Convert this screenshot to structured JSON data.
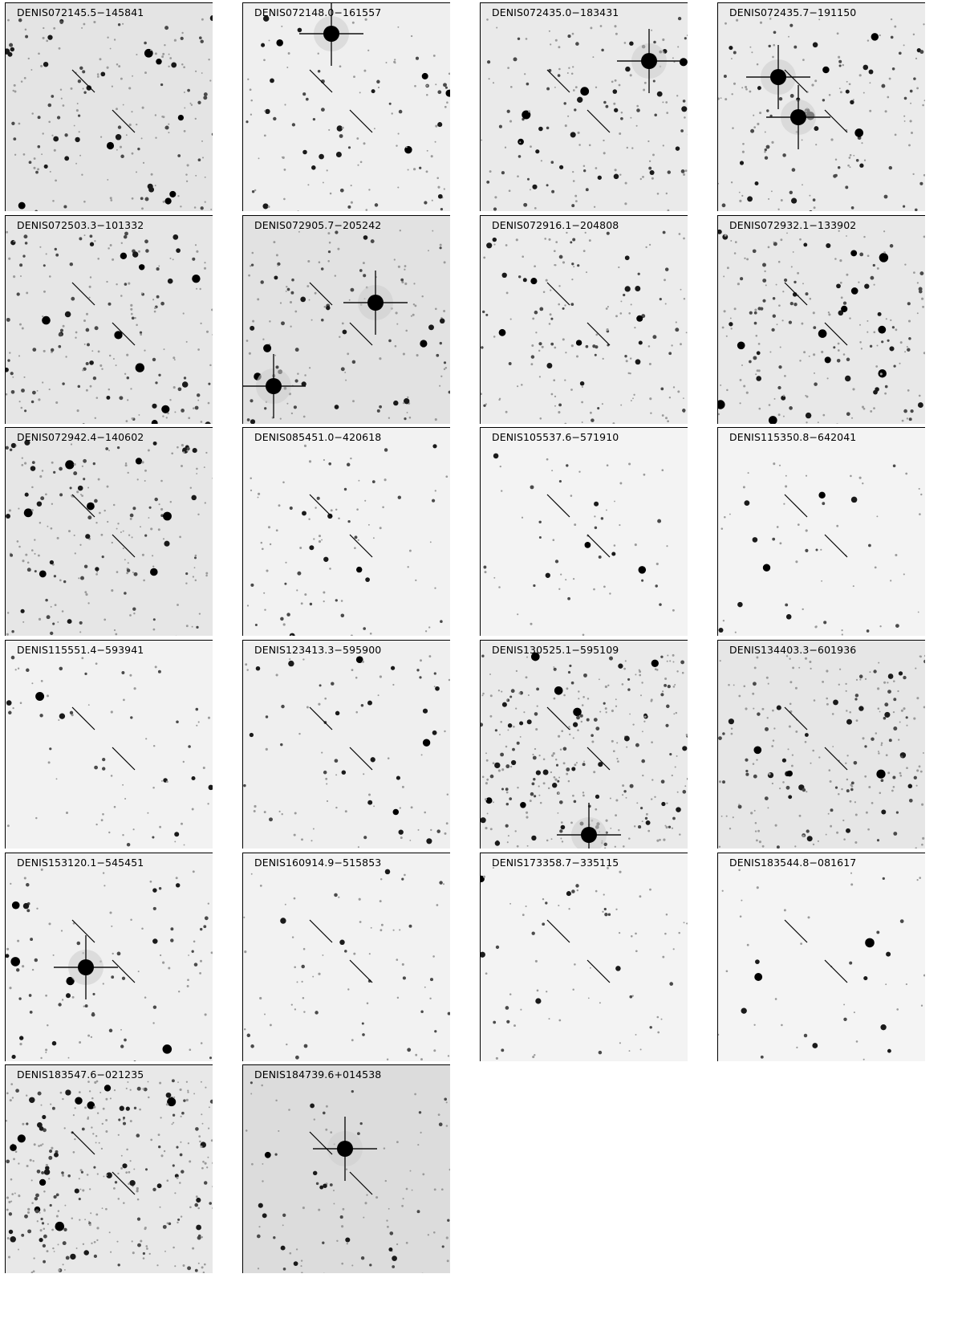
{
  "panels": [
    {
      "label": "DENIS072145.5−145841",
      "field": {
        "density": 1.3,
        "bg": "#e4e4e4",
        "bright": []
      }
    },
    {
      "label": "DENIS072148.0−161557",
      "field": {
        "density": 0.8,
        "bg": "#efefef",
        "bright": [
          "upper-center"
        ]
      }
    },
    {
      "label": "DENIS072435.0−183431",
      "field": {
        "density": 1.1,
        "bg": "#eaeaea",
        "bright": [
          "upper-right"
        ]
      }
    },
    {
      "label": "DENIS072435.7−191150",
      "field": {
        "density": 1.1,
        "bg": "#ebebeb",
        "bright": [
          "left",
          "center-left"
        ]
      }
    },
    {
      "label": "DENIS072503.3−101332",
      "field": {
        "density": 1.3,
        "bg": "#e6e6e6",
        "bright": []
      }
    },
    {
      "label": "DENIS072905.7−205242",
      "field": {
        "density": 1.0,
        "bg": "#e2e2e2",
        "bright": [
          "center-right",
          "lower-left"
        ]
      }
    },
    {
      "label": "DENIS072916.1−204808",
      "field": {
        "density": 1.1,
        "bg": "#ececec",
        "bright": []
      }
    },
    {
      "label": "DENIS072932.1−133902",
      "field": {
        "density": 1.4,
        "bg": "#e8e8e8",
        "bright": []
      }
    },
    {
      "label": "DENIS072942.4−140602",
      "field": {
        "density": 1.4,
        "bg": "#e6e6e6",
        "bright": []
      }
    },
    {
      "label": "DENIS085451.0−420618",
      "field": {
        "density": 0.6,
        "bg": "#f2f2f2",
        "bright": []
      }
    },
    {
      "label": "DENIS105537.6−571910",
      "field": {
        "density": 0.4,
        "bg": "#f3f3f3",
        "bright": []
      }
    },
    {
      "label": "DENIS115350.8−642041",
      "field": {
        "density": 0.4,
        "bg": "#f3f3f3",
        "bright": []
      }
    },
    {
      "label": "DENIS115551.4−593941",
      "field": {
        "density": 0.5,
        "bg": "#f2f2f2",
        "bright": []
      }
    },
    {
      "label": "DENIS123413.3−595900",
      "field": {
        "density": 0.6,
        "bg": "#efefef",
        "bright": []
      }
    },
    {
      "label": "DENIS130525.1−595109",
      "field": {
        "density": 2.0,
        "bg": "#eaeaea",
        "bright": [
          "bottom"
        ]
      }
    },
    {
      "label": "DENIS134403.3−601936",
      "field": {
        "density": 1.5,
        "bg": "#e6e6e6",
        "bright": []
      }
    },
    {
      "label": "DENIS153120.1−545451",
      "field": {
        "density": 0.7,
        "bg": "#f0f0f0",
        "bright": [
          "center-left"
        ]
      }
    },
    {
      "label": "DENIS160914.9−515853",
      "field": {
        "density": 0.5,
        "bg": "#f2f2f2",
        "bright": []
      }
    },
    {
      "label": "DENIS173358.7−335115",
      "field": {
        "density": 0.5,
        "bg": "#f3f3f3",
        "bright": []
      }
    },
    {
      "label": "DENIS183544.8−081617",
      "field": {
        "density": 0.3,
        "bg": "#f4f4f4",
        "bright": []
      }
    },
    {
      "label": "DENIS183547.6−021235",
      "field": {
        "density": 2.2,
        "bg": "#e8e8e8",
        "bright": []
      }
    },
    {
      "label": "DENIS184739.6+014538",
      "field": {
        "density": 0.7,
        "bg": "#dcdcdc",
        "bright": [
          "center"
        ]
      }
    }
  ]
}
